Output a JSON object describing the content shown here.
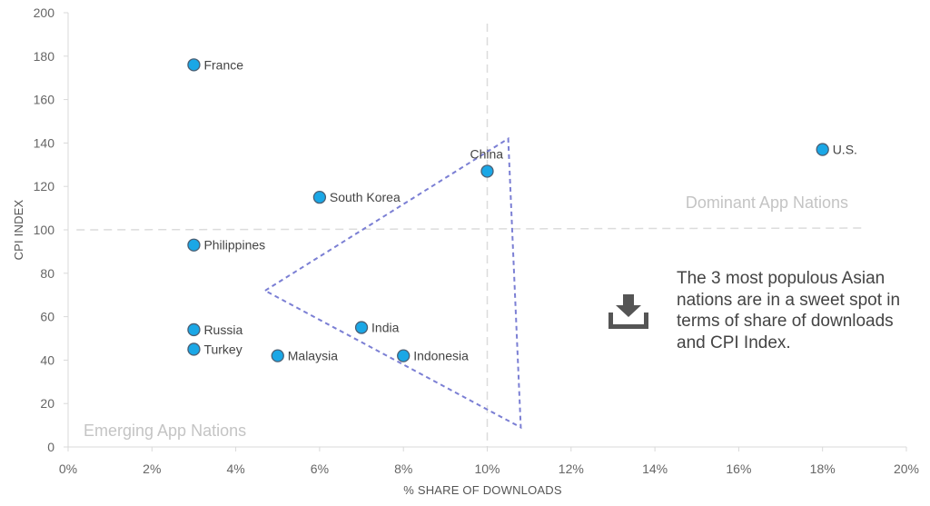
{
  "chart_data": {
    "type": "scatter",
    "title": "",
    "xlabel": "% SHARE OF DOWNLOADS",
    "ylabel": "CPI INDEX",
    "xlim": [
      0,
      20
    ],
    "ylim": [
      0,
      200
    ],
    "x_ticks": [
      0,
      2,
      4,
      6,
      8,
      10,
      12,
      14,
      16,
      18,
      20
    ],
    "x_tick_labels": [
      "0%",
      "2%",
      "4%",
      "6%",
      "8%",
      "10%",
      "12%",
      "14%",
      "16%",
      "18%",
      "20%"
    ],
    "y_ticks": [
      0,
      20,
      40,
      60,
      80,
      100,
      120,
      140,
      160,
      180,
      200
    ],
    "y_tick_labels": [
      "0",
      "20",
      "40",
      "60",
      "80",
      "100",
      "120",
      "140",
      "160",
      "180",
      "200"
    ],
    "grid": false,
    "reference_lines": {
      "x": 10,
      "y": 100
    },
    "points": [
      {
        "label": "France",
        "x": 3,
        "y": 176
      },
      {
        "label": "China",
        "x": 10,
        "y": 127
      },
      {
        "label": "U.S.",
        "x": 18,
        "y": 137
      },
      {
        "label": "South Korea",
        "x": 6,
        "y": 115
      },
      {
        "label": "Philippines",
        "x": 3,
        "y": 93
      },
      {
        "label": "Russia",
        "x": 3,
        "y": 54
      },
      {
        "label": "Turkey",
        "x": 3,
        "y": 45
      },
      {
        "label": "India",
        "x": 7,
        "y": 55
      },
      {
        "label": "Malaysia",
        "x": 5,
        "y": 42
      },
      {
        "label": "Indonesia",
        "x": 8,
        "y": 42
      }
    ],
    "highlight_triangle": [
      {
        "x": 4.7,
        "y": 72
      },
      {
        "x": 10.5,
        "y": 142
      },
      {
        "x": 10.8,
        "y": 9
      }
    ],
    "point_color": "#1aa7e6",
    "point_stroke": "#4a5f74",
    "triangle_color": "#7b7fd4",
    "annotations": {
      "top_right": "Dominant App Nations",
      "bottom_left": "Emerging App Nations"
    },
    "callout_text": "The 3 most populous Asian nations are in a sweet spot in terms of share of downloads and CPI Index.",
    "callout_icon": "download-tray-icon"
  }
}
